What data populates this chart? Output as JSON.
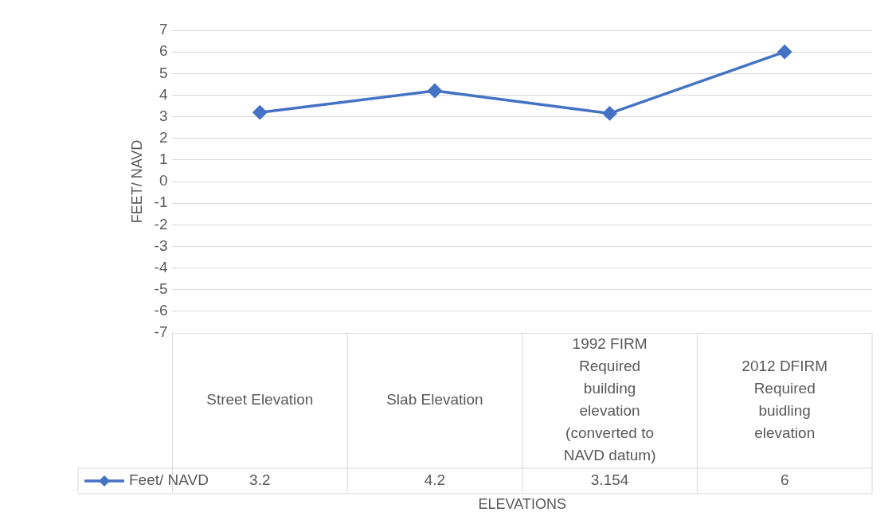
{
  "chart_data": {
    "type": "line",
    "xlabel": "ELEVATIONS",
    "ylabel": "FEET/ NAVD",
    "categories": [
      "Street Elevation",
      "Slab Elevation",
      "1992 FIRM Required building elevation (converted to NAVD datum)",
      "2012 DFIRM Required buidling elevation"
    ],
    "series": [
      {
        "name": "Feet/ NAVD",
        "color": "#4472c4",
        "values": [
          3.2,
          4.2,
          3.154,
          6
        ]
      }
    ],
    "ylim": [
      -7,
      7
    ],
    "yticks": [
      -7,
      -6,
      -5,
      -4,
      -3,
      -2,
      -1,
      0,
      1,
      2,
      3,
      4,
      5,
      6,
      7
    ],
    "grid": "y",
    "legend": "bottom",
    "marker": "diamond",
    "line_style": "solid",
    "data_labels": true
  }
}
